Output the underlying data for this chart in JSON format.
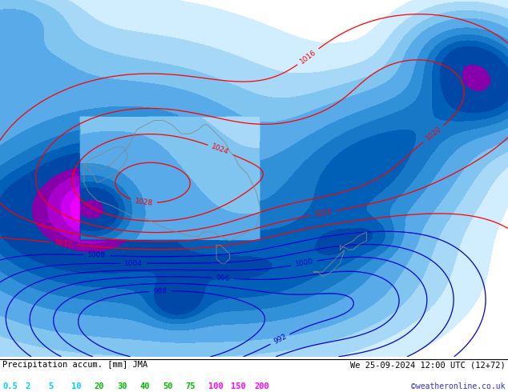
{
  "title_left": "Precipitation accum. [mm] JMA",
  "title_right": "We 25-09-2024 12:00 UTC (12+72)",
  "credit": "©weatheronline.co.uk",
  "colorbar_labels": [
    "0.5",
    "2",
    "5",
    "10",
    "20",
    "30",
    "40",
    "50",
    "75",
    "100",
    "150",
    "200"
  ],
  "label_colors": {
    "0.5": "#00ccff",
    "2": "#00ccff",
    "5": "#00ccff",
    "10": "#00ccff",
    "20": "#00bb00",
    "30": "#00bb00",
    "40": "#00bb00",
    "50": "#00bb00",
    "75": "#00bb00",
    "100": "#ff00ff",
    "150": "#ff00ff",
    "200": "#ff00ff"
  },
  "precip_levels": [
    0,
    0.5,
    2,
    5,
    10,
    20,
    30,
    40,
    50,
    75,
    100,
    150,
    200,
    500
  ],
  "precip_colors": [
    "#ffffff",
    "#d0eeff",
    "#a8d8f8",
    "#80c4f0",
    "#58aae8",
    "#3090d8",
    "#1878c8",
    "#0060b8",
    "#0048a8",
    "#8800aa",
    "#aa00cc",
    "#cc00ee",
    "#ee00ff"
  ],
  "high_pressure_levels": [
    1012,
    1016,
    1020,
    1024,
    1028,
    1032
  ],
  "low_pressure_levels": [
    988,
    992,
    996,
    1000,
    1004,
    1008
  ],
  "fig_width": 6.34,
  "fig_height": 4.9
}
